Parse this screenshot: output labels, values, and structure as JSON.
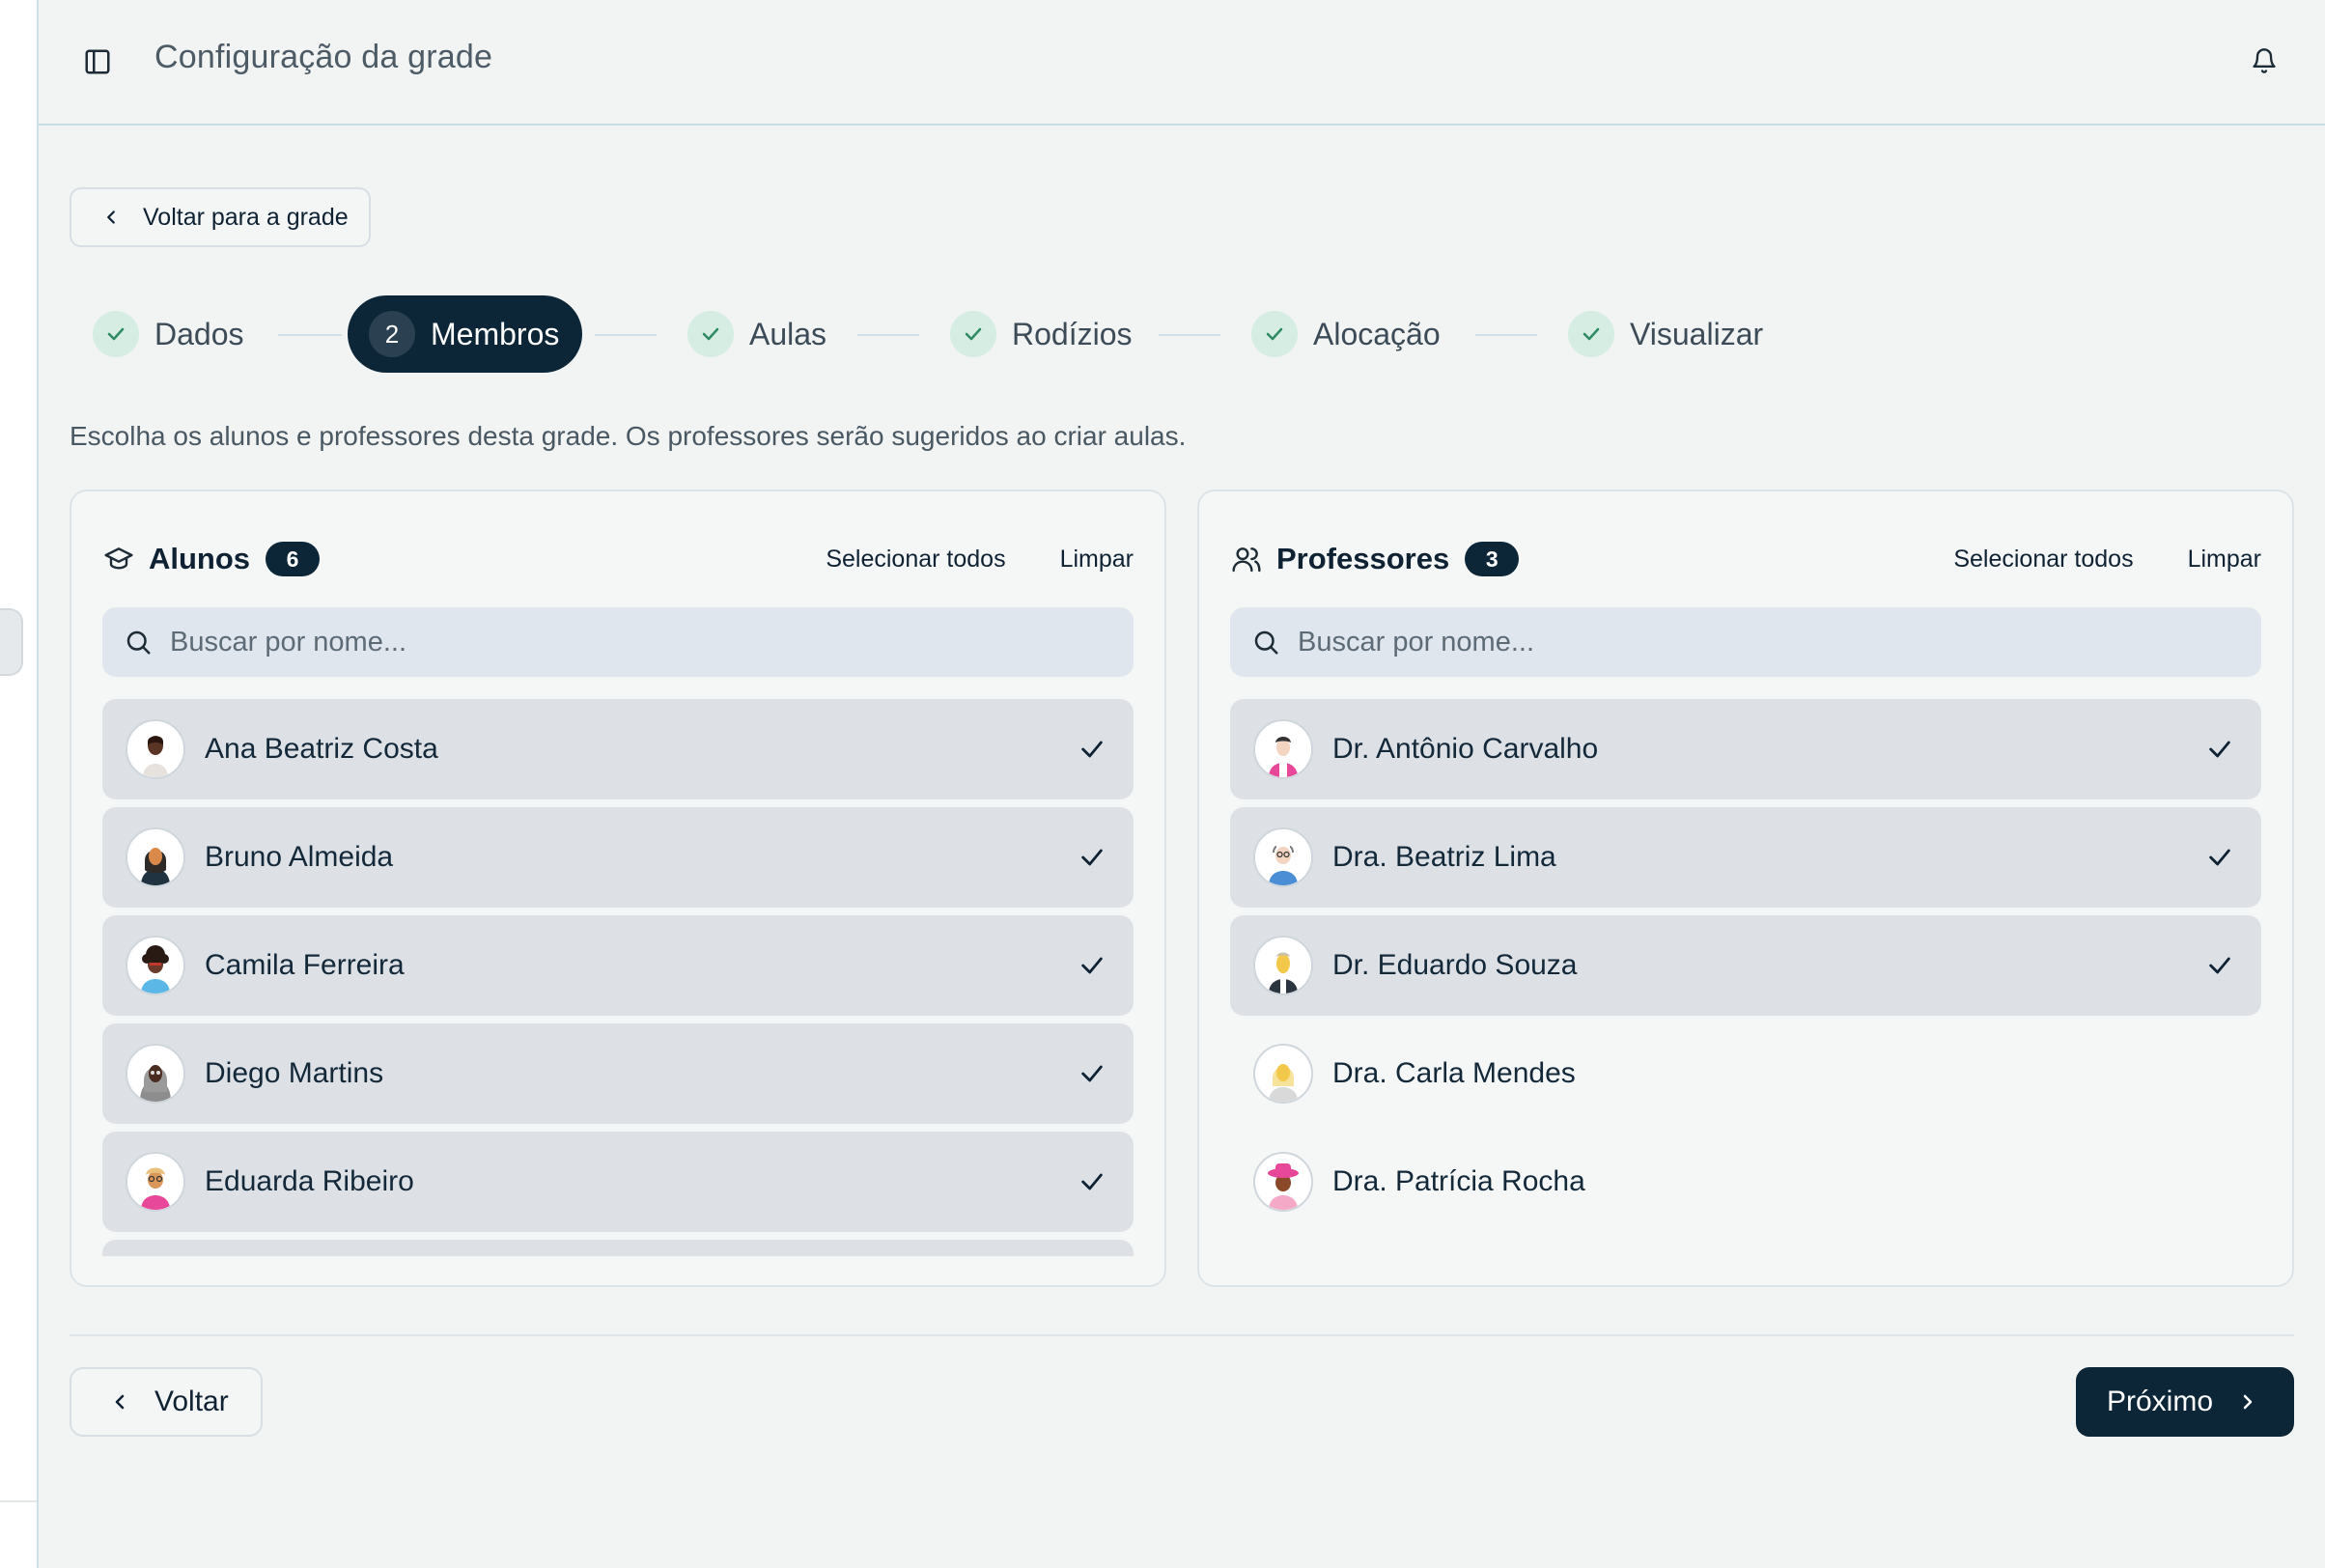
{
  "header": {
    "title": "Configuração da grade",
    "panel_icon": "sidebar-toggle-icon",
    "bell_icon": "bell-icon"
  },
  "back_to_grade": {
    "label": "Voltar para a grade"
  },
  "stepper": {
    "steps": [
      {
        "label": "Dados",
        "state": "done"
      },
      {
        "label": "Membros",
        "state": "active",
        "number": "2"
      },
      {
        "label": "Aulas",
        "state": "done"
      },
      {
        "label": "Rodízios",
        "state": "done"
      },
      {
        "label": "Alocação",
        "state": "done"
      },
      {
        "label": "Visualizar",
        "state": "done"
      }
    ]
  },
  "instructions": "Escolha os alunos e professores desta grade. Os professores serão sugeridos ao criar aulas.",
  "students": {
    "title": "Alunos",
    "count": "6",
    "select_all": "Selecionar todos",
    "clear": "Limpar",
    "search_placeholder": "Buscar por nome...",
    "items": [
      {
        "name": "Ana Beatriz Costa",
        "selected": true
      },
      {
        "name": "Bruno Almeida",
        "selected": true
      },
      {
        "name": "Camila Ferreira",
        "selected": true
      },
      {
        "name": "Diego Martins",
        "selected": true
      },
      {
        "name": "Eduarda Ribeiro",
        "selected": true
      },
      {
        "name": "",
        "selected": true
      }
    ]
  },
  "teachers": {
    "title": "Professores",
    "count": "3",
    "select_all": "Selecionar todos",
    "clear": "Limpar",
    "search_placeholder": "Buscar por nome...",
    "items": [
      {
        "name": "Dr. Antônio Carvalho",
        "selected": true
      },
      {
        "name": "Dra. Beatriz Lima",
        "selected": true
      },
      {
        "name": "Dr. Eduardo Souza",
        "selected": true
      },
      {
        "name": "Dra. Carla Mendes",
        "selected": false
      },
      {
        "name": "Dra. Patrícia Rocha",
        "selected": false
      }
    ]
  },
  "footer": {
    "back_label": "Voltar",
    "next_label": "Próximo"
  },
  "colors": {
    "primary": "#0c2638",
    "step_done_bg": "#d5ede3",
    "step_check": "#2f8a63",
    "row_selected_bg": "#dde1e6",
    "search_bg": "#dfe6ee"
  }
}
